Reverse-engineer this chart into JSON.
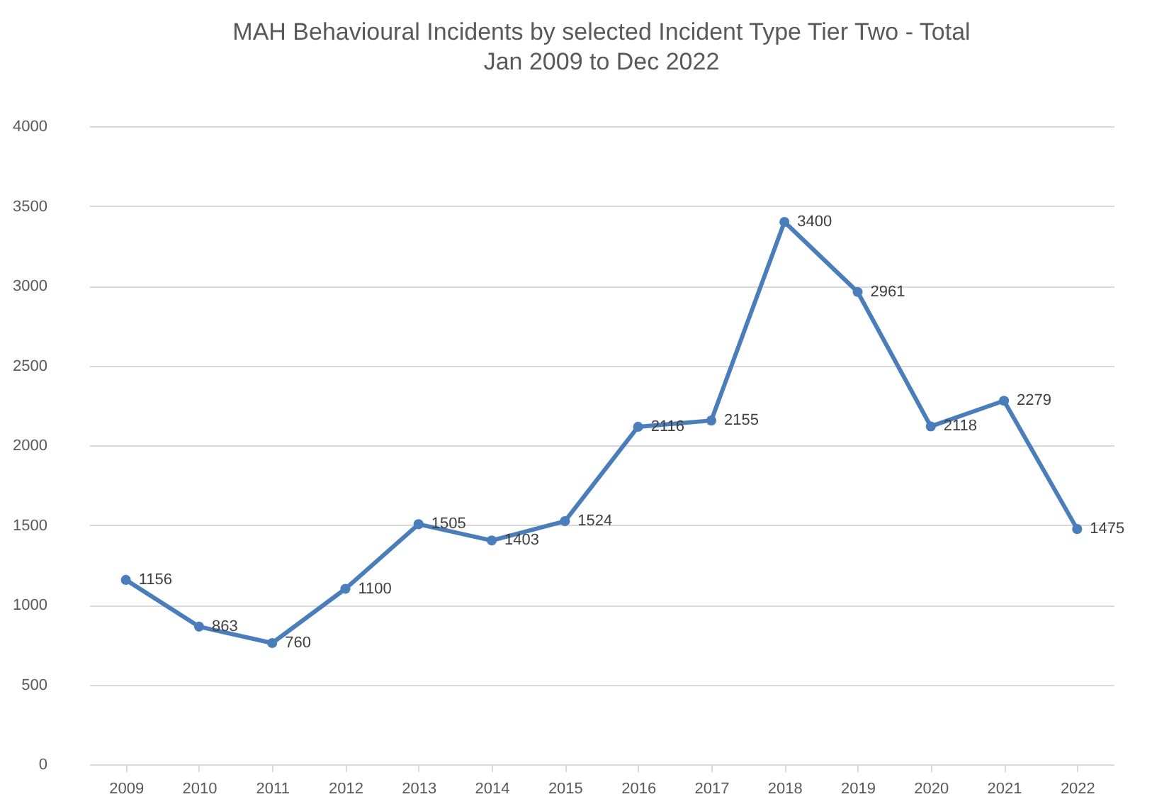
{
  "chart_data": {
    "type": "line",
    "title": "MAH Behavioural Incidents by selected Incident Type Tier Two - Total",
    "subtitle": "Jan 2009 to Dec 2022",
    "categories": [
      "2009",
      "2010",
      "2011",
      "2012",
      "2013",
      "2014",
      "2015",
      "2016",
      "2017",
      "2018",
      "2019",
      "2020",
      "2021",
      "2022"
    ],
    "values": [
      1156,
      863,
      760,
      1100,
      1505,
      1403,
      1524,
      2116,
      2155,
      3400,
      2961,
      2118,
      2279,
      1475
    ],
    "color": "#4a7ebb",
    "ylim": [
      0,
      4000
    ],
    "yticks": [
      0,
      500,
      1000,
      1500,
      2000,
      2500,
      3000,
      3500,
      4000
    ],
    "grid": "y",
    "marker": "circle",
    "data_labels": true
  }
}
